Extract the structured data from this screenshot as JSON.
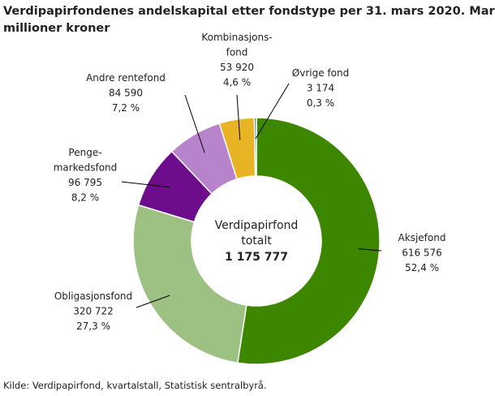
{
  "chart_data": {
    "type": "donut",
    "title": "Verdipapirfondenes andelskapital etter fondstype per 31. mars 2020. Markedsverdi i millioner kroner",
    "categories": [
      "Aksjefond",
      "Obligasjonsfond",
      "Penge-\nmarkedsfond",
      "Andre rentefond",
      "Kombinasjons-\nfond",
      "Øvrige fond"
    ],
    "values": [
      616576,
      320722,
      96795,
      84590,
      53920,
      3174
    ],
    "value_labels": [
      "616 576",
      "320 722",
      "96 795",
      "84 590",
      "53 920",
      "3 174"
    ],
    "percents": [
      52.4,
      27.3,
      8.2,
      7.2,
      4.6,
      0.3
    ],
    "percent_labels": [
      "52,4 %",
      "27,3 %",
      "8,2 %",
      "7,2 %",
      "4,6 %",
      "0,3 %"
    ],
    "colors": [
      "#3d8700",
      "#9dc183",
      "#6e0d8b",
      "#b784cc",
      "#e8b324",
      "#2f6fa3"
    ],
    "center_label": "Verdipapirfond\ntotalt",
    "total": 1175777,
    "total_label": "1 175 777",
    "source": "Kilde: Verdipapirfond, kvartalstall, Statistisk sentralbyrå."
  }
}
